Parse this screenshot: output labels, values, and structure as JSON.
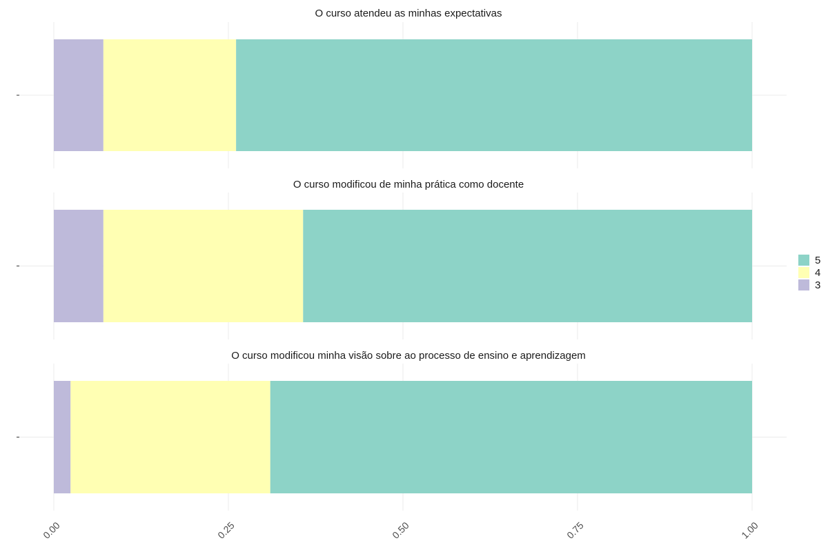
{
  "chart_data": {
    "type": "bar",
    "orientation": "horizontal",
    "stacked": true,
    "facets": [
      {
        "title": "O curso atendeu as minhas expectativas",
        "segments": [
          {
            "level": "3",
            "value": 0.071
          },
          {
            "level": "4",
            "value": 0.19
          },
          {
            "level": "5",
            "value": 0.739
          }
        ]
      },
      {
        "title": "O curso modificou de minha prática como docente",
        "segments": [
          {
            "level": "3",
            "value": 0.071
          },
          {
            "level": "4",
            "value": 0.286
          },
          {
            "level": "5",
            "value": 0.643
          }
        ]
      },
      {
        "title": "O curso modificou minha visão sobre ao processo de ensino e aprendizagem",
        "segments": [
          {
            "level": "3",
            "value": 0.024
          },
          {
            "level": "4",
            "value": 0.286
          },
          {
            "level": "5",
            "value": 0.69
          }
        ]
      }
    ],
    "x_ticks": [
      "0.00",
      "0.25",
      "0.50",
      "0.75",
      "1.00"
    ],
    "x_tick_values": [
      0,
      0.25,
      0.5,
      0.75,
      1
    ],
    "xlim": [
      0,
      1
    ],
    "xlabel": "",
    "ylabel": "",
    "grid": true,
    "legend": {
      "position": "right",
      "items": [
        {
          "label": "5",
          "color": "#8dd3c7"
        },
        {
          "label": "4",
          "color": "#ffffb3"
        },
        {
          "label": "3",
          "color": "#bebada"
        }
      ]
    },
    "colors": {
      "3": "#bebada",
      "4": "#ffffb3",
      "5": "#8dd3c7"
    }
  }
}
